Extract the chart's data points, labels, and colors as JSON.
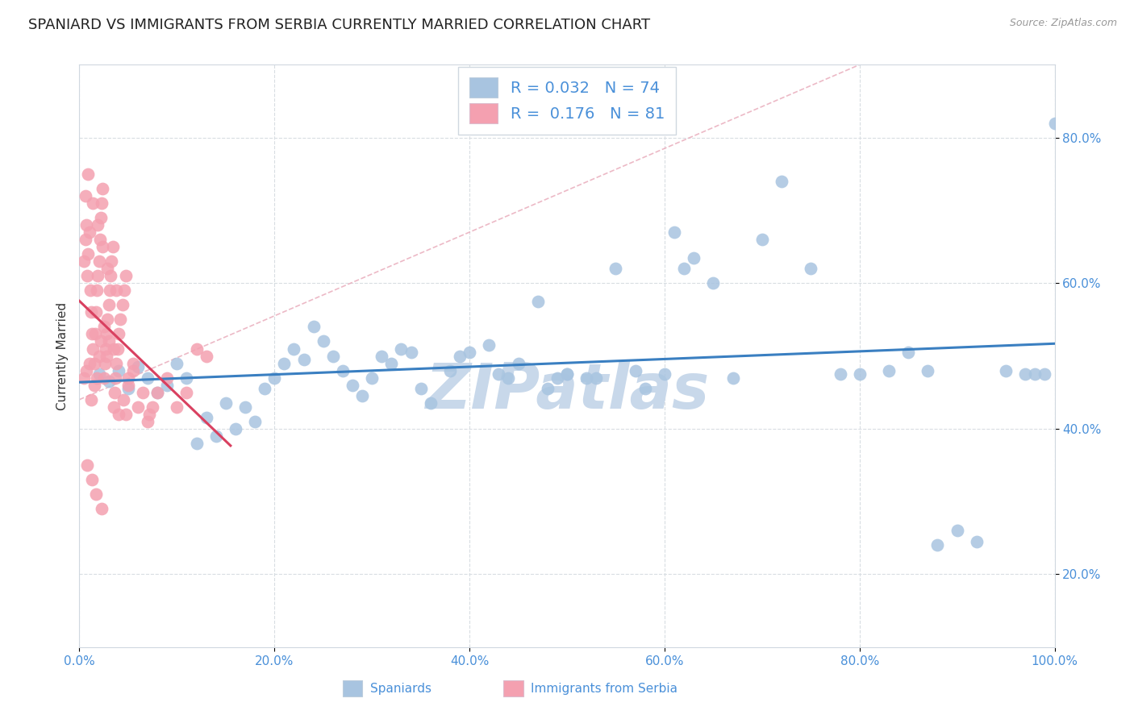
{
  "title": "SPANIARD VS IMMIGRANTS FROM SERBIA CURRENTLY MARRIED CORRELATION CHART",
  "source_text": "Source: ZipAtlas.com",
  "ylabel": "Currently Married",
  "xlim": [
    0.0,
    1.0
  ],
  "ylim": [
    0.1,
    0.9
  ],
  "xticks": [
    0.0,
    0.2,
    0.4,
    0.6,
    0.8,
    1.0
  ],
  "yticks": [
    0.2,
    0.4,
    0.6,
    0.8
  ],
  "xtick_labels": [
    "0.0%",
    "20.0%",
    "40.0%",
    "60.0%",
    "80.0%",
    "100.0%"
  ],
  "ytick_labels": [
    "20.0%",
    "40.0%",
    "60.0%",
    "80.0%"
  ],
  "legend_blue_r": "0.032",
  "legend_blue_n": "74",
  "legend_pink_r": "0.176",
  "legend_pink_n": "81",
  "blue_color": "#a8c4e0",
  "pink_color": "#f4a0b0",
  "blue_line_color": "#3a7fc1",
  "pink_line_color": "#d94060",
  "diag_color": "#e8a0b0",
  "grid_color": "#d8dde2",
  "watermark_text": "ZIPatlas",
  "watermark_color": "#c8d8ea",
  "title_fontsize": 13,
  "axis_label_fontsize": 11,
  "tick_fontsize": 11,
  "legend_fontsize": 14,
  "blue_scatter_x": [
    0.02,
    0.03,
    0.04,
    0.05,
    0.06,
    0.07,
    0.08,
    0.09,
    0.1,
    0.11,
    0.12,
    0.13,
    0.14,
    0.15,
    0.16,
    0.17,
    0.18,
    0.19,
    0.2,
    0.21,
    0.22,
    0.23,
    0.24,
    0.25,
    0.26,
    0.27,
    0.28,
    0.29,
    0.3,
    0.31,
    0.32,
    0.33,
    0.34,
    0.35,
    0.36,
    0.38,
    0.39,
    0.4,
    0.42,
    0.43,
    0.44,
    0.45,
    0.47,
    0.48,
    0.49,
    0.5,
    0.52,
    0.53,
    0.55,
    0.57,
    0.58,
    0.6,
    0.61,
    0.62,
    0.63,
    0.65,
    0.67,
    0.7,
    0.72,
    0.75,
    0.78,
    0.8,
    0.83,
    0.85,
    0.87,
    0.88,
    0.9,
    0.92,
    0.95,
    0.97,
    0.98,
    0.99,
    1.0,
    0.5
  ],
  "blue_scatter_y": [
    0.475,
    0.465,
    0.48,
    0.455,
    0.485,
    0.47,
    0.45,
    0.46,
    0.49,
    0.47,
    0.38,
    0.415,
    0.39,
    0.435,
    0.4,
    0.43,
    0.41,
    0.455,
    0.47,
    0.49,
    0.51,
    0.495,
    0.54,
    0.52,
    0.5,
    0.48,
    0.46,
    0.445,
    0.47,
    0.5,
    0.49,
    0.51,
    0.505,
    0.455,
    0.435,
    0.48,
    0.5,
    0.505,
    0.515,
    0.475,
    0.47,
    0.49,
    0.575,
    0.455,
    0.47,
    0.475,
    0.47,
    0.47,
    0.62,
    0.48,
    0.455,
    0.475,
    0.67,
    0.62,
    0.635,
    0.6,
    0.47,
    0.66,
    0.74,
    0.62,
    0.475,
    0.475,
    0.48,
    0.505,
    0.48,
    0.24,
    0.26,
    0.245,
    0.48,
    0.475,
    0.475,
    0.475,
    0.82,
    0.475
  ],
  "pink_scatter_x": [
    0.005,
    0.006,
    0.007,
    0.008,
    0.009,
    0.01,
    0.011,
    0.012,
    0.013,
    0.014,
    0.015,
    0.016,
    0.017,
    0.018,
    0.019,
    0.02,
    0.021,
    0.022,
    0.023,
    0.024,
    0.025,
    0.026,
    0.027,
    0.028,
    0.029,
    0.03,
    0.031,
    0.032,
    0.033,
    0.034,
    0.035,
    0.036,
    0.037,
    0.038,
    0.039,
    0.04,
    0.042,
    0.044,
    0.046,
    0.048,
    0.05,
    0.055,
    0.06,
    0.065,
    0.07,
    0.075,
    0.08,
    0.09,
    0.1,
    0.11,
    0.12,
    0.13,
    0.005,
    0.007,
    0.01,
    0.012,
    0.015,
    0.018,
    0.02,
    0.022,
    0.025,
    0.028,
    0.03,
    0.035,
    0.04,
    0.045,
    0.05,
    0.008,
    0.013,
    0.017,
    0.023,
    0.006,
    0.009,
    0.014,
    0.019,
    0.024,
    0.029,
    0.038,
    0.048,
    0.055,
    0.072
  ],
  "pink_scatter_y": [
    0.63,
    0.66,
    0.68,
    0.61,
    0.64,
    0.67,
    0.59,
    0.56,
    0.53,
    0.51,
    0.49,
    0.53,
    0.56,
    0.59,
    0.61,
    0.63,
    0.66,
    0.69,
    0.71,
    0.73,
    0.47,
    0.49,
    0.51,
    0.53,
    0.55,
    0.57,
    0.59,
    0.61,
    0.63,
    0.65,
    0.43,
    0.45,
    0.47,
    0.49,
    0.51,
    0.53,
    0.55,
    0.57,
    0.59,
    0.61,
    0.47,
    0.49,
    0.43,
    0.45,
    0.41,
    0.43,
    0.45,
    0.47,
    0.43,
    0.45,
    0.51,
    0.5,
    0.47,
    0.48,
    0.49,
    0.44,
    0.46,
    0.47,
    0.5,
    0.52,
    0.54,
    0.5,
    0.52,
    0.51,
    0.42,
    0.44,
    0.46,
    0.35,
    0.33,
    0.31,
    0.29,
    0.72,
    0.75,
    0.71,
    0.68,
    0.65,
    0.62,
    0.59,
    0.42,
    0.48,
    0.42
  ],
  "pink_line_x_start": 0.0,
  "pink_line_x_end": 0.155,
  "blue_line_x_start": 0.0,
  "blue_line_x_end": 1.0
}
